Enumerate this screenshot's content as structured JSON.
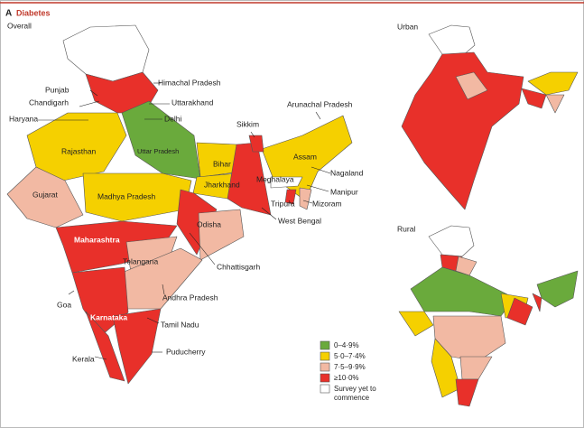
{
  "panel": "A",
  "title": "Diabetes",
  "maps": [
    "Overall",
    "Urban",
    "Rural"
  ],
  "states": [
    "Himachal Pradesh",
    "Punjab",
    "Chandigarh",
    "Uttarakhand",
    "Haryana",
    "Delhi",
    "Arunachal Pradesh",
    "Sikkim",
    "Rajasthan",
    "Uttar Pradesh",
    "Assam",
    "Bihar",
    "Nagaland",
    "Meghalaya",
    "Jharkhand",
    "Manipur",
    "Gujarat",
    "Madhya Pradesh",
    "Tripura",
    "Mizoram",
    "West Bengal",
    "Odisha",
    "Maharashtra",
    "Telangana",
    "Chhattisgarh",
    "Goa",
    "Andhra Pradesh",
    "Karnataka",
    "Tamil Nadu",
    "Puducherry",
    "Kerala"
  ],
  "legend": [
    {
      "label": "0–4·9%",
      "color": "#6aaa3c"
    },
    {
      "label": "5·0–7·4%",
      "color": "#f5d000"
    },
    {
      "label": "7·5–9·9%",
      "color": "#f2b9a3"
    },
    {
      "label": "≥10·0%",
      "color": "#e8302a"
    },
    {
      "label": "Survey yet to commence",
      "color": "#ffffff"
    }
  ]
}
